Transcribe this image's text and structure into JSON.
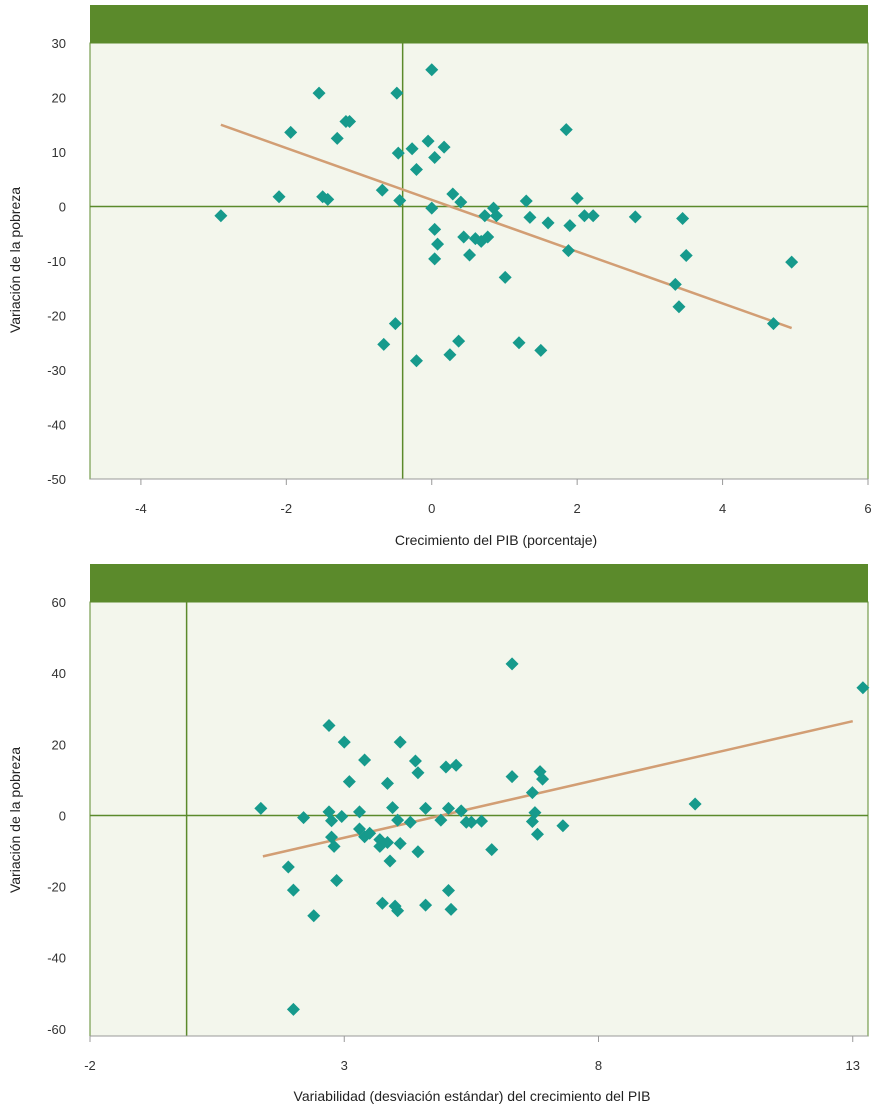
{
  "colors": {
    "header_bar": "#5b8a2b",
    "plot_bg": "#f3f6ec",
    "frame": "#5b8a2b",
    "marker": "#169a8c",
    "trend": "#d29e74"
  },
  "chart_data": [
    {
      "type": "scatter",
      "title": "",
      "xlabel": "Crecimiento del PIB (porcentaje)",
      "ylabel": "Variación de la pobreza",
      "xlim": [
        -4.7,
        6
      ],
      "ylim": [
        -50,
        30
      ],
      "xticks": [
        -4,
        -2,
        0,
        2,
        4,
        6
      ],
      "yticks": [
        30,
        20,
        10,
        0,
        -10,
        -20,
        -30,
        -40,
        -50
      ],
      "xtick_labels": [
        "-4",
        "-2",
        "0",
        "2",
        "4",
        "6"
      ],
      "ytick_labels": [
        "30",
        "20",
        "10",
        "0",
        "-10",
        "-20",
        "-30",
        "-40",
        "-50"
      ],
      "grid": false,
      "reference_lines": {
        "x": -0.4,
        "y": 0
      },
      "trendline": [
        [
          -2.9,
          15
        ],
        [
          4.95,
          -22.3
        ]
      ],
      "points": [
        [
          -2.9,
          -1.7
        ],
        [
          -2.1,
          1.8
        ],
        [
          -1.94,
          13.6
        ],
        [
          -1.55,
          20.8
        ],
        [
          -1.5,
          1.8
        ],
        [
          -1.43,
          1.3
        ],
        [
          -1.3,
          12.5
        ],
        [
          -1.18,
          15.6
        ],
        [
          -1.13,
          15.6
        ],
        [
          -0.68,
          3
        ],
        [
          -0.66,
          -25.3
        ],
        [
          -0.5,
          -21.5
        ],
        [
          -0.48,
          20.8
        ],
        [
          -0.46,
          9.8
        ],
        [
          -0.44,
          1.1
        ],
        [
          -0.27,
          10.6
        ],
        [
          -0.21,
          -28.3
        ],
        [
          -0.21,
          6.8
        ],
        [
          -0.05,
          12
        ],
        [
          0,
          25.1
        ],
        [
          0,
          -0.3
        ],
        [
          0.04,
          -4.2
        ],
        [
          0.04,
          9
        ],
        [
          0.04,
          -9.6
        ],
        [
          0.08,
          -6.9
        ],
        [
          0.17,
          10.9
        ],
        [
          0.25,
          -27.2
        ],
        [
          0.29,
          2.3
        ],
        [
          0.37,
          -24.7
        ],
        [
          0.4,
          0.8
        ],
        [
          0.44,
          -5.6
        ],
        [
          0.52,
          -8.9
        ],
        [
          0.6,
          -5.9
        ],
        [
          0.68,
          -6.4
        ],
        [
          0.73,
          -1.7
        ],
        [
          0.77,
          -5.6
        ],
        [
          0.85,
          -0.3
        ],
        [
          0.89,
          -1.7
        ],
        [
          1.01,
          -13
        ],
        [
          1.2,
          -25
        ],
        [
          1.3,
          1
        ],
        [
          1.35,
          -2
        ],
        [
          1.5,
          -26.4
        ],
        [
          1.6,
          -3
        ],
        [
          1.85,
          14.1
        ],
        [
          1.88,
          -8.1
        ],
        [
          1.9,
          -3.5
        ],
        [
          2.0,
          1.5
        ],
        [
          2.1,
          -1.7
        ],
        [
          2.22,
          -1.7
        ],
        [
          2.8,
          -1.9
        ],
        [
          3.35,
          -14.3
        ],
        [
          3.4,
          -18.4
        ],
        [
          3.45,
          -2.2
        ],
        [
          3.5,
          -9
        ],
        [
          4.7,
          -21.5
        ],
        [
          4.95,
          -10.2
        ]
      ]
    },
    {
      "type": "scatter",
      "title": "",
      "xlabel": "Variabilidad (desviación estándar) del crecimiento del PIB",
      "ylabel": "Variación de la pobreza",
      "xlim": [
        -2,
        13.3
      ],
      "ylim": [
        -62,
        60
      ],
      "xticks": [
        -2,
        3,
        8,
        13
      ],
      "yticks": [
        60,
        40,
        20,
        0,
        -20,
        -40,
        -60
      ],
      "xtick_labels": [
        "-2",
        "3",
        "8",
        "13"
      ],
      "ytick_labels": [
        "60",
        "40",
        "20",
        "0",
        "-20",
        "-40",
        "-60"
      ],
      "grid": false,
      "reference_lines": {
        "x": -0.1,
        "y": 0
      },
      "trendline": [
        [
          1.4,
          -11.5
        ],
        [
          13.0,
          26.5
        ]
      ],
      "points": [
        [
          1.36,
          2
        ],
        [
          1.9,
          -14.5
        ],
        [
          2.0,
          -21
        ],
        [
          2.0,
          -54.5
        ],
        [
          2.2,
          -0.6
        ],
        [
          2.4,
          -28.2
        ],
        [
          2.7,
          25.3
        ],
        [
          2.7,
          1
        ],
        [
          2.75,
          -6.1
        ],
        [
          2.75,
          -1.5
        ],
        [
          2.8,
          -8.7
        ],
        [
          2.85,
          -18.3
        ],
        [
          2.95,
          -0.3
        ],
        [
          3.0,
          20.6
        ],
        [
          3.1,
          9.5
        ],
        [
          3.3,
          1
        ],
        [
          3.3,
          -3.8
        ],
        [
          3.4,
          -6
        ],
        [
          3.4,
          15.6
        ],
        [
          3.5,
          -5
        ],
        [
          3.7,
          -6.8
        ],
        [
          3.7,
          -8.7
        ],
        [
          3.75,
          -24.7
        ],
        [
          3.85,
          -7.6
        ],
        [
          3.85,
          9
        ],
        [
          3.9,
          -12.8
        ],
        [
          3.95,
          2.2
        ],
        [
          4.0,
          -25.5
        ],
        [
          4.05,
          -1.3
        ],
        [
          4.05,
          -26.8
        ],
        [
          4.1,
          20.6
        ],
        [
          4.1,
          -7.9
        ],
        [
          4.3,
          -1.9
        ],
        [
          4.4,
          15.3
        ],
        [
          4.45,
          -10.2
        ],
        [
          4.45,
          12
        ],
        [
          4.6,
          -25.2
        ],
        [
          4.6,
          2
        ],
        [
          4.9,
          -1.3
        ],
        [
          5.0,
          13.6
        ],
        [
          5.05,
          -21.1
        ],
        [
          5.05,
          2
        ],
        [
          5.1,
          -26.4
        ],
        [
          5.2,
          14.1
        ],
        [
          5.3,
          1.3
        ],
        [
          5.4,
          -1.9
        ],
        [
          5.5,
          -1.9
        ],
        [
          5.7,
          -1.6
        ],
        [
          5.9,
          -9.6
        ],
        [
          6.3,
          42.6
        ],
        [
          6.3,
          10.9
        ],
        [
          6.7,
          6.4
        ],
        [
          6.7,
          -1.7
        ],
        [
          6.75,
          0.8
        ],
        [
          6.8,
          -5.3
        ],
        [
          6.85,
          12.3
        ],
        [
          6.9,
          10.2
        ],
        [
          7.3,
          -2.9
        ],
        [
          9.9,
          3.2
        ],
        [
          13.2,
          35.9
        ]
      ]
    }
  ]
}
